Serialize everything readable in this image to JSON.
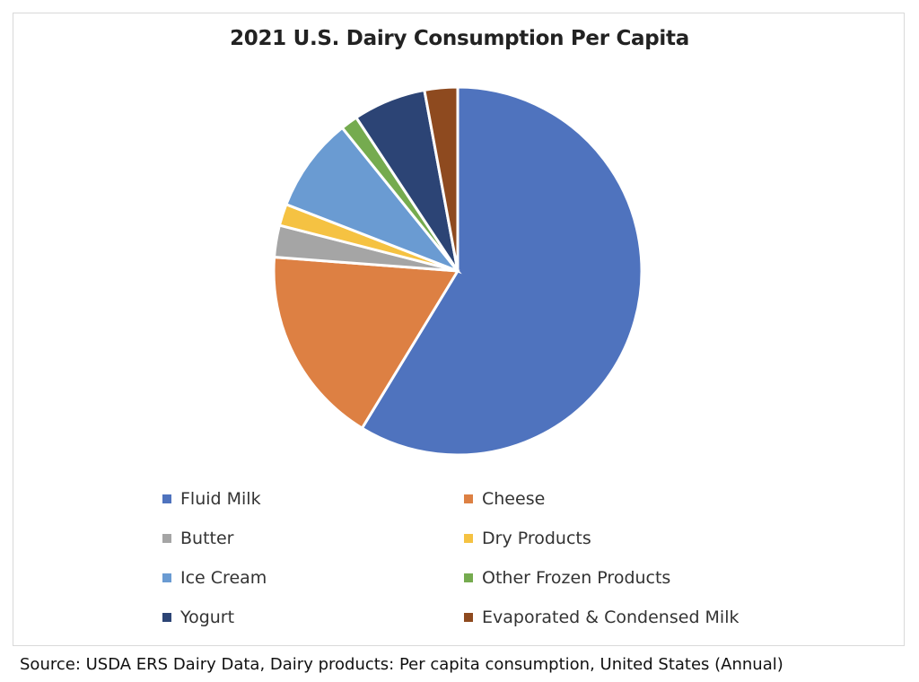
{
  "chart_data": {
    "type": "pie",
    "title": "2021 U.S. Dairy Consumption Per Capita",
    "unit": "percent share (estimated)",
    "start_angle": "12 o'clock, clockwise",
    "legend_position": "bottom",
    "slices": [
      {
        "label": "Fluid Milk",
        "value": 58.7,
        "color": "#4f73be"
      },
      {
        "label": "Cheese",
        "value": 17.5,
        "color": "#dd8043"
      },
      {
        "label": "Butter",
        "value": 2.8,
        "color": "#a5a5a5"
      },
      {
        "label": "Dry Products",
        "value": 1.9,
        "color": "#f5c242"
      },
      {
        "label": "Ice Cream",
        "value": 8.3,
        "color": "#6a9bd2"
      },
      {
        "label": "Other Frozen Products",
        "value": 1.5,
        "color": "#75ab4f"
      },
      {
        "label": "Yogurt",
        "value": 6.4,
        "color": "#2c4475"
      },
      {
        "label": "Evaporated & Condensed Milk",
        "value": 2.9,
        "color": "#8e4a1f"
      }
    ]
  },
  "source": "Source: USDA ERS Dairy Data, Dairy products: Per capita consumption, United States (Annual)"
}
